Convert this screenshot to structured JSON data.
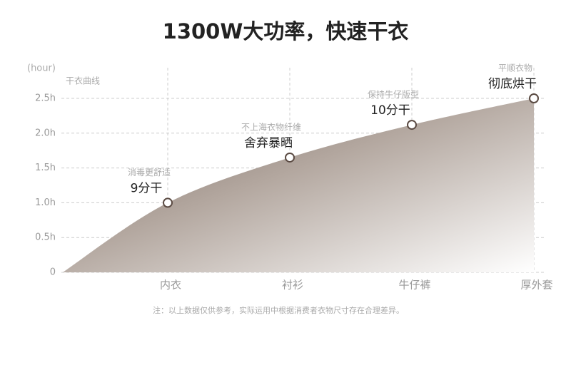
{
  "chart_data": {
    "type": "area",
    "title": "1300W大功率，快速干衣",
    "y_axis_label": "(hour)",
    "subtitle": "干衣曲线",
    "categories": [
      "内衣",
      "衬衫",
      "牛仔裤",
      "厚外套"
    ],
    "values": [
      1.0,
      1.65,
      2.12,
      2.5
    ],
    "annotations": [
      {
        "note": "消毒更舒适",
        "label": "9分干"
      },
      {
        "note": "不上海衣物纤维",
        "label": "舍弃暴晒"
      },
      {
        "note": "保持牛仔版型",
        "label": "10分干"
      },
      {
        "note": "平顺衣物",
        "label": "彻底烘干"
      }
    ],
    "ylim": [
      0,
      2.5
    ],
    "yticks": [
      0,
      {
        "value": 0.5,
        "label": "0.5h"
      },
      {
        "value": 1.0,
        "label": "1.0h"
      },
      {
        "value": 1.5,
        "label": "1.5h"
      },
      {
        "value": 2.0,
        "label": "2.0h"
      },
      {
        "value": 2.5,
        "label": "2.5h"
      }
    ],
    "grid": true,
    "color": "#7b6c64",
    "footnote": "注：以上数据仅供参考，实际运用中根据消费者衣物尺寸存在合理差异。"
  }
}
